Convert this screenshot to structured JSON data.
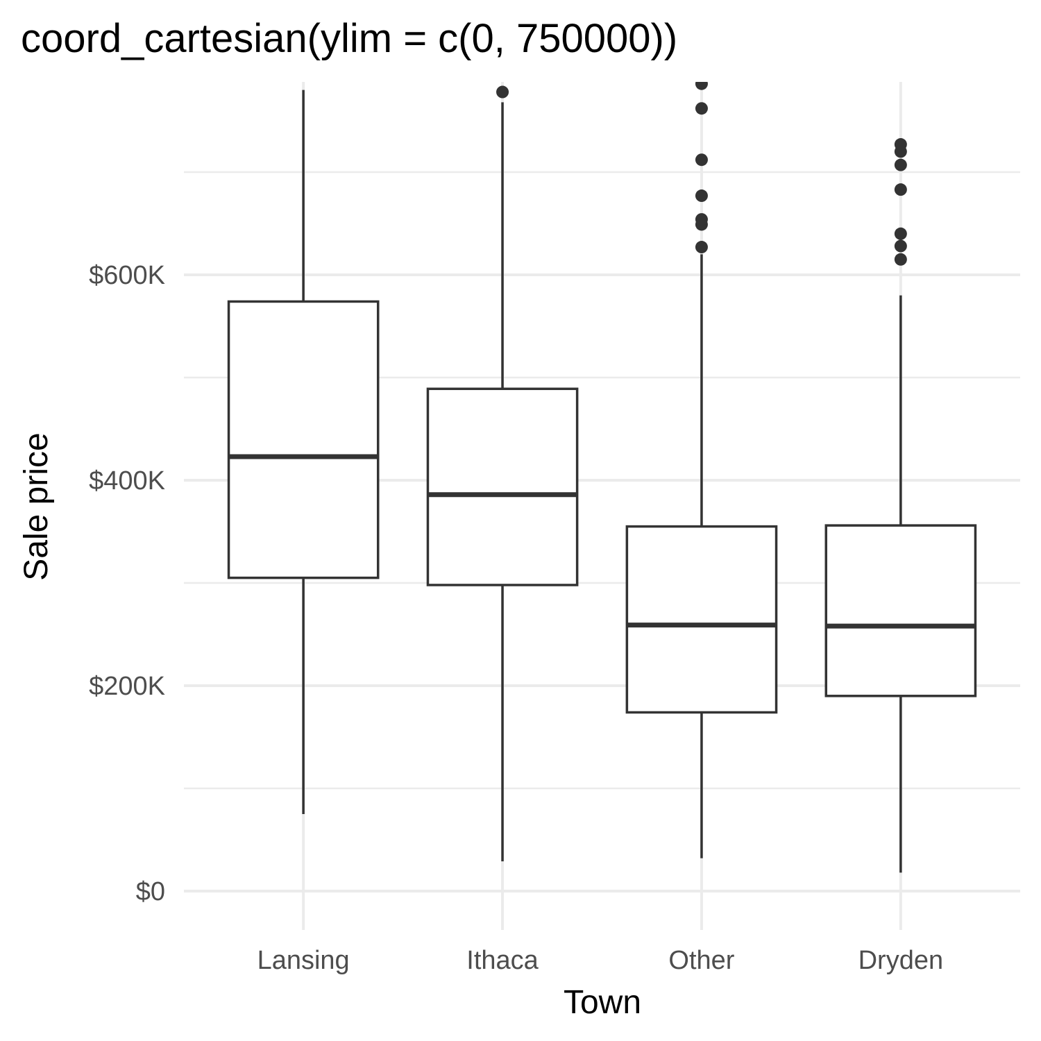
{
  "chart_data": {
    "type": "boxplot",
    "title": "coord_cartesian(ylim = c(0, 750000))",
    "xlabel": "Town",
    "ylabel": "Sale price",
    "ylim": [
      0,
      750000
    ],
    "y_ticks": [
      {
        "value": 0,
        "label": "$0"
      },
      {
        "value": 200000,
        "label": "$200K"
      },
      {
        "value": 400000,
        "label": "$400K"
      },
      {
        "value": 600000,
        "label": "$600K"
      }
    ],
    "grid": true,
    "categories": [
      "Lansing",
      "Ithaca",
      "Other",
      "Dryden"
    ],
    "boxes": [
      {
        "category": "Lansing",
        "lower_whisker": 75000,
        "q1": 305000,
        "median": 423000,
        "q3": 574000,
        "upper_whisker": 780000,
        "outliers": []
      },
      {
        "category": "Ithaca",
        "lower_whisker": 29000,
        "q1": 298000,
        "median": 386000,
        "q3": 489000,
        "upper_whisker": 768000,
        "outliers": [
          778000
        ]
      },
      {
        "category": "Other",
        "lower_whisker": 32000,
        "q1": 174000,
        "median": 259000,
        "q3": 355000,
        "upper_whisker": 620000,
        "outliers": [
          627000,
          649000,
          654000,
          677000,
          712000,
          762000,
          786000
        ]
      },
      {
        "category": "Dryden",
        "lower_whisker": 18000,
        "q1": 190000,
        "median": 258000,
        "q3": 356000,
        "upper_whisker": 580000,
        "outliers": [
          615000,
          628000,
          640000,
          683000,
          707000,
          720000,
          727000
        ]
      }
    ]
  }
}
